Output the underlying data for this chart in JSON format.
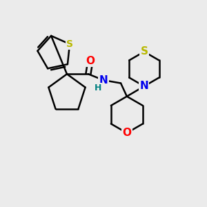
{
  "bg_color": "#ebebeb",
  "bond_color": "#000000",
  "bond_width": 1.8,
  "atom_colors": {
    "S_thiophene": "#b8b800",
    "S_thiomorph": "#b8b800",
    "O": "#ff0000",
    "N": "#0000ee",
    "H": "#008080"
  },
  "figsize": [
    3.0,
    3.0
  ],
  "dpi": 100,
  "xlim": [
    0.0,
    10.0
  ],
  "ylim": [
    0.0,
    10.0
  ]
}
